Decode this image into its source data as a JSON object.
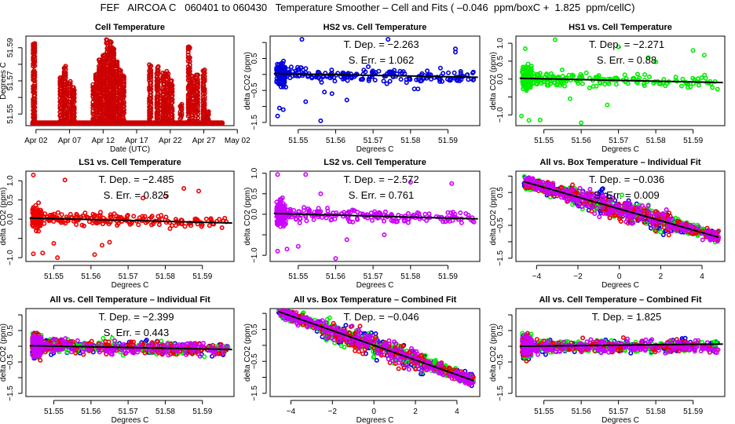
{
  "title": "FEF   AIRCOA C   060401 to 060430   Temperature Smoother – Cell and Fits ( –0.046  ppm/boxC +  1.825  ppm/cellC)",
  "chart_data": [
    {
      "id": "cell-temperature",
      "type": "scatter",
      "title": "Cell Temperature",
      "xlabel": "Date (UTC)",
      "ylabel": "Degrees C",
      "x_ticks": [
        "Apr 02",
        "Apr 07",
        "Apr 12",
        "Apr 17",
        "Apr 22",
        "Apr 27",
        "May 02"
      ],
      "xlim_days": [
        0.5,
        31.5
      ],
      "x_tick_days": [
        2,
        7,
        12,
        17,
        22,
        27,
        32
      ],
      "ylim": [
        51.543,
        51.597
      ],
      "y_ticks": [
        51.55,
        51.56,
        51.57,
        51.58,
        51.59
      ],
      "y_tick_labels": [
        "51.55",
        "",
        "51.57",
        "",
        "51.59"
      ],
      "color": "#cc0000",
      "baseline": 51.544,
      "bursts": [
        {
          "day": 1.7,
          "max": 51.593
        },
        {
          "day": 5.7,
          "max": 51.573
        },
        {
          "day": 6.3,
          "max": 51.58
        },
        {
          "day": 7.0,
          "max": 51.57
        },
        {
          "day": 7.6,
          "max": 51.567
        },
        {
          "day": 10.6,
          "max": 51.568
        },
        {
          "day": 11.0,
          "max": 51.575
        },
        {
          "day": 11.5,
          "max": 51.583
        },
        {
          "day": 12.1,
          "max": 51.586
        },
        {
          "day": 12.6,
          "max": 51.595
        },
        {
          "day": 13.1,
          "max": 51.594
        },
        {
          "day": 13.5,
          "max": 51.59
        },
        {
          "day": 14.0,
          "max": 51.583
        },
        {
          "day": 14.5,
          "max": 51.577
        },
        {
          "day": 15.0,
          "max": 51.574
        },
        {
          "day": 19.0,
          "max": 51.58
        },
        {
          "day": 20.1,
          "max": 51.579
        },
        {
          "day": 21.0,
          "max": 51.575
        },
        {
          "day": 21.6,
          "max": 51.576
        },
        {
          "day": 22.2,
          "max": 51.571
        },
        {
          "day": 23.6,
          "max": 51.558
        },
        {
          "day": 24.8,
          "max": 51.591
        },
        {
          "day": 25.3,
          "max": 51.573
        },
        {
          "day": 26.0,
          "max": 51.574
        },
        {
          "day": 27.0,
          "max": 51.577
        },
        {
          "day": 27.6,
          "max": 51.552
        }
      ],
      "baseline_end_day": 29.8
    },
    {
      "id": "hs2-vs-cell",
      "type": "scatter",
      "title": "HS2 vs. Cell Temperature",
      "xlabel": "Degrees C",
      "ylabel": "delta CO2 (ppm)",
      "xlim": [
        51.5425,
        51.5985
      ],
      "ylim": [
        -1.6,
        1.2
      ],
      "x_ticks": [
        51.55,
        51.56,
        51.57,
        51.58,
        51.59
      ],
      "x_tick_labels": [
        "51.55",
        "51.56",
        "51.57",
        "51.58",
        "51.59"
      ],
      "y_ticks": [
        1.0,
        0.5,
        0.0,
        -0.5,
        -1.0,
        -1.5
      ],
      "y_tick_labels": [
        "",
        "0.5",
        "",
        "-0.5",
        "",
        "-1.5"
      ],
      "series": [
        {
          "name": "HS2",
          "color": "#0000dd"
        }
      ],
      "fit": {
        "slope": -2.263,
        "intercept_at_min": 0.03
      },
      "annotations": [
        "T. Dep. =  −2.263",
        "S. Err. =  1.062"
      ],
      "spread": 0.25,
      "outliers": [
        [
          51.551,
          1.1
        ],
        [
          51.556,
          -1.45
        ],
        [
          51.5445,
          -1.3
        ],
        [
          51.545,
          -1.05
        ],
        [
          51.546,
          -1.1
        ],
        [
          51.563,
          -0.8
        ],
        [
          51.552,
          -0.85
        ],
        [
          51.559,
          -0.6
        ],
        [
          51.574,
          1.1
        ],
        [
          51.592,
          0.8
        ],
        [
          51.592,
          0.7
        ],
        [
          51.588,
          0.2
        ],
        [
          51.581,
          -0.45
        ],
        [
          51.582,
          -0.45
        ],
        [
          51.557,
          -0.55
        ]
      ]
    },
    {
      "id": "hs1-vs-cell",
      "type": "scatter",
      "title": "HS1 vs. Cell Temperature",
      "xlabel": "Degrees C",
      "ylabel": "delta CO2 (ppm)",
      "xlim": [
        51.5425,
        51.5985
      ],
      "ylim": [
        -1.3,
        1.2
      ],
      "x_ticks": [
        51.55,
        51.56,
        51.57,
        51.58,
        51.59
      ],
      "x_tick_labels": [
        "51.55",
        "51.56",
        "51.57",
        "51.58",
        "51.59"
      ],
      "y_ticks": [
        1.0,
        0.5,
        0.0,
        -0.5,
        -1.0
      ],
      "y_tick_labels": [
        "1.0",
        "0.5",
        "0.0",
        "",
        "-1.0"
      ],
      "series": [
        {
          "name": "HS1",
          "color": "#00ee00"
        }
      ],
      "fit": {
        "slope": -2.271,
        "intercept_at_min": 0.02
      },
      "annotations": [
        "T. Dep. =  −2.271",
        "S. Err. =  0.88"
      ],
      "spread": 0.22,
      "outliers": [
        [
          51.553,
          1.1
        ],
        [
          51.56,
          -1.22
        ],
        [
          51.544,
          -1.03
        ],
        [
          51.546,
          -1.15
        ],
        [
          51.549,
          -1.14
        ],
        [
          51.557,
          -0.55
        ],
        [
          51.567,
          -0.72
        ],
        [
          51.57,
          0.9
        ],
        [
          51.59,
          0.8
        ],
        [
          51.593,
          0.67
        ],
        [
          51.58,
          0.48
        ],
        [
          51.578,
          0.6
        ],
        [
          51.545,
          0.85
        ]
      ]
    },
    {
      "id": "ls1-vs-cell",
      "type": "scatter",
      "title": "LS1 vs. Cell Temperature",
      "xlabel": "Degrees C",
      "ylabel": "delta CO2 (ppm)",
      "xlim": [
        51.5425,
        51.5985
      ],
      "ylim": [
        -1.1,
        1.25
      ],
      "x_ticks": [
        51.55,
        51.56,
        51.57,
        51.58,
        51.59
      ],
      "x_tick_labels": [
        "51.55",
        "51.56",
        "51.57",
        "51.58",
        "51.59"
      ],
      "y_ticks": [
        1.0,
        0.5,
        0.0,
        -0.5,
        -1.0
      ],
      "y_tick_labels": [
        "1.0",
        "0.5",
        "0.0",
        "",
        "-1.0"
      ],
      "series": [
        {
          "name": "LS1",
          "color": "#ee0000"
        }
      ],
      "fit": {
        "slope": -2.485,
        "intercept_at_min": 0.03
      },
      "annotations": [
        "T. Dep. =  −2.485",
        "S. Err. =  0.825"
      ],
      "spread": 0.2,
      "outliers": [
        [
          51.5445,
          1.15
        ],
        [
          51.553,
          1.02
        ],
        [
          51.551,
          -1.0
        ],
        [
          51.5445,
          -0.9
        ],
        [
          51.547,
          -0.88
        ],
        [
          51.561,
          -0.92
        ],
        [
          51.563,
          -0.68
        ],
        [
          51.565,
          -0.6
        ],
        [
          51.55,
          -0.63
        ],
        [
          51.585,
          0.8
        ],
        [
          51.589,
          0.73
        ],
        [
          51.58,
          0.6
        ],
        [
          51.574,
          0.55
        ]
      ]
    },
    {
      "id": "ls2-vs-cell",
      "type": "scatter",
      "title": "LS2 vs. Cell Temperature",
      "xlabel": "Degrees C",
      "ylabel": "delta CO2 (ppm)",
      "xlim": [
        51.5425,
        51.5985
      ],
      "ylim": [
        -1.15,
        1.05
      ],
      "x_ticks": [
        51.55,
        51.56,
        51.57,
        51.58,
        51.59
      ],
      "x_tick_labels": [
        "51.55",
        "51.56",
        "51.57",
        "51.58",
        "51.59"
      ],
      "y_ticks": [
        1.0,
        0.5,
        0.0,
        -0.5,
        -1.0
      ],
      "y_tick_labels": [
        "1.0",
        "0.5",
        "0.0",
        "",
        "-1.0"
      ],
      "series": [
        {
          "name": "LS2",
          "color": "#cc00ff"
        }
      ],
      "fit": {
        "slope": -2.572,
        "intercept_at_min": 0.02
      },
      "annotations": [
        "T. Dep. =  −2.572",
        "S. Err. =  0.761"
      ],
      "spread": 0.2,
      "outliers": [
        [
          51.5445,
          0.97
        ],
        [
          51.552,
          0.97
        ],
        [
          51.56,
          -1.08
        ],
        [
          51.5445,
          -0.9
        ],
        [
          51.547,
          -0.85
        ],
        [
          51.55,
          -0.78
        ],
        [
          51.563,
          -0.62
        ],
        [
          51.591,
          0.75
        ],
        [
          51.58,
          0.78
        ],
        [
          51.556,
          0.5
        ],
        [
          51.573,
          -0.5
        ]
      ]
    },
    {
      "id": "all-vs-box-individual",
      "type": "scatter",
      "title": "All vs. Box Temperature – Individual Fit",
      "xlabel": "Degrees C",
      "ylabel": "delta CO2 (ppm)",
      "xlim": [
        -5.0,
        5.1
      ],
      "ylim": [
        -1.6,
        1.15
      ],
      "x_ticks": [
        -4,
        -2,
        0,
        2,
        4
      ],
      "x_tick_labels": [
        "−4",
        "−2",
        "0",
        "2",
        "4"
      ],
      "y_ticks": [
        1.0,
        0.5,
        0.0,
        -0.5,
        -1.0,
        -1.5
      ],
      "y_tick_labels": [
        "",
        "0.5",
        "",
        "-0.5",
        "",
        "-1.5"
      ],
      "series": [
        {
          "name": "HS2",
          "color": "#0000dd"
        },
        {
          "name": "HS1",
          "color": "#00ee00"
        },
        {
          "name": "LS1",
          "color": "#ee0000"
        },
        {
          "name": "LS2",
          "color": "#cc00ff"
        }
      ],
      "fit": {
        "slope": -0.036,
        "intercept": 0.0
      },
      "annotations": [
        "T. Dep. =  −0.036",
        "S. Err. =  0.009"
      ],
      "spread": 0.3
    },
    {
      "id": "all-vs-cell-individual",
      "type": "scatter",
      "title": "All vs. Cell Temperature – Individual Fit",
      "xlabel": "Degrees C",
      "ylabel": "delta CO2 (ppm)",
      "xlim": [
        51.5425,
        51.5985
      ],
      "ylim": [
        -1.6,
        1.2
      ],
      "x_ticks": [
        51.55,
        51.56,
        51.57,
        51.58,
        51.59
      ],
      "x_tick_labels": [
        "51.55",
        "51.56",
        "51.57",
        "51.58",
        "51.59"
      ],
      "y_ticks": [
        1.0,
        0.5,
        0.0,
        -0.5,
        -1.0,
        -1.5
      ],
      "y_tick_labels": [
        "",
        "0.5",
        "",
        "-0.5",
        "",
        "-1.5"
      ],
      "series": [
        {
          "name": "HS2",
          "color": "#0000dd"
        },
        {
          "name": "HS1",
          "color": "#00ee00"
        },
        {
          "name": "LS1",
          "color": "#ee0000"
        },
        {
          "name": "LS2",
          "color": "#cc00ff"
        }
      ],
      "fit": {
        "slope": -2.399,
        "intercept_at_min": 0.02
      },
      "annotations": [
        "T. Dep. =  −2.399",
        "S. Err. =  0.443"
      ],
      "spread": 0.25
    },
    {
      "id": "all-vs-box-combined",
      "type": "scatter",
      "title": "All vs. Box Temperature – Combined Fit",
      "xlabel": "Degrees C",
      "ylabel": "delta CO2 (ppm)",
      "xlim": [
        -5.0,
        5.1
      ],
      "ylim": [
        -1.6,
        1.15
      ],
      "x_ticks": [
        -4,
        -2,
        0,
        2,
        4
      ],
      "x_tick_labels": [
        "−4",
        "−2",
        "0",
        "2",
        "4"
      ],
      "y_ticks": [
        1.0,
        0.5,
        0.0,
        -0.5,
        -1.0,
        -1.5
      ],
      "y_tick_labels": [
        "",
        "0.5",
        "",
        "-0.5",
        "",
        "-1.5"
      ],
      "series": [
        {
          "name": "HS2",
          "color": "#0000dd"
        },
        {
          "name": "HS1",
          "color": "#00ee00"
        },
        {
          "name": "LS1",
          "color": "#ee0000"
        },
        {
          "name": "LS2",
          "color": "#cc00ff"
        }
      ],
      "fit": {
        "slope": -0.046,
        "intercept": 0.0
      },
      "annotations": [
        "T. Dep. =  −0.046"
      ],
      "spread": 0.3
    },
    {
      "id": "all-vs-cell-combined",
      "type": "scatter",
      "title": "All vs. Cell Temperature – Combined Fit",
      "xlabel": "Degrees C",
      "ylabel": "delta CO2 (ppm)",
      "xlim": [
        51.5425,
        51.5985
      ],
      "ylim": [
        -1.6,
        1.2
      ],
      "x_ticks": [
        51.55,
        51.56,
        51.57,
        51.58,
        51.59
      ],
      "x_tick_labels": [
        "51.55",
        "51.56",
        "51.57",
        "51.58",
        "51.59"
      ],
      "y_ticks": [
        1.0,
        0.5,
        0.0,
        -0.5,
        -1.0,
        -1.5
      ],
      "y_tick_labels": [
        "",
        "0.5",
        "",
        "-0.5",
        "",
        "-1.5"
      ],
      "series": [
        {
          "name": "HS2",
          "color": "#0000dd"
        },
        {
          "name": "HS1",
          "color": "#00ee00"
        },
        {
          "name": "LS1",
          "color": "#ee0000"
        },
        {
          "name": "LS2",
          "color": "#cc00ff"
        }
      ],
      "fit": {
        "slope": 1.825,
        "intercept_at_min": 0.0
      },
      "annotations": [
        "T. Dep. =  1.825"
      ],
      "spread": 0.25
    }
  ]
}
